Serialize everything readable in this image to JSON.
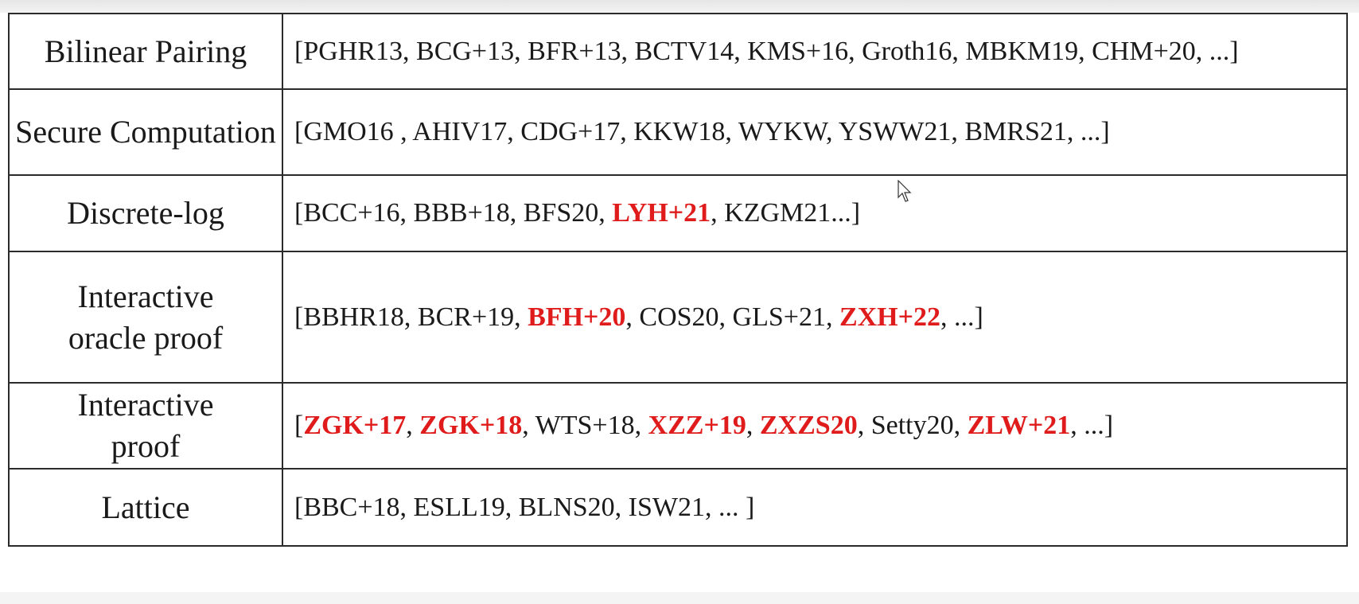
{
  "rows": [
    {
      "label": "Bilinear Pairing",
      "refs": [
        {
          "text": "[PGHR13, BCG+13, BFR+13, BCTV14, KMS+16, Groth16, MBKM19, CHM+20, ...]",
          "highlight": false
        }
      ]
    },
    {
      "label": "Secure Computation",
      "refs": [
        {
          "text": "[GMO16 , AHIV17, CDG+17, KKW18, WYKW, YSWW21, BMRS21, ...]",
          "highlight": false
        }
      ]
    },
    {
      "label": "Discrete-log",
      "refs": [
        {
          "text": "[BCC+16, BBB+18, BFS20, ",
          "highlight": false
        },
        {
          "text": "LYH+21",
          "highlight": true
        },
        {
          "text": ", KZGM21...]",
          "highlight": false
        }
      ]
    },
    {
      "label": "Interactive oracle proof",
      "refs": [
        {
          "text": "[BBHR18, BCR+19, ",
          "highlight": false
        },
        {
          "text": "BFH+20",
          "highlight": true
        },
        {
          "text": ", COS20, GLS+21, ",
          "highlight": false
        },
        {
          "text": "ZXH+22",
          "highlight": true
        },
        {
          "text": ", ...]",
          "highlight": false
        }
      ]
    },
    {
      "label": "Interactive proof",
      "refs": [
        {
          "text": "[",
          "highlight": false
        },
        {
          "text": "ZGK+17",
          "highlight": true
        },
        {
          "text": ", ",
          "highlight": false
        },
        {
          "text": "ZGK+18",
          "highlight": true
        },
        {
          "text": ", WTS+18, ",
          "highlight": false
        },
        {
          "text": "XZZ+19",
          "highlight": true
        },
        {
          "text": ", ",
          "highlight": false
        },
        {
          "text": "ZXZS20",
          "highlight": true
        },
        {
          "text": ", Setty20, ",
          "highlight": false
        },
        {
          "text": "ZLW+21",
          "highlight": true
        },
        {
          "text": ", ...]",
          "highlight": false
        }
      ]
    },
    {
      "label": "Lattice",
      "refs": [
        {
          "text": "[BBC+18, ESLL19, BLNS20, ISW21, ... ]",
          "highlight": false
        }
      ]
    }
  ],
  "colors": {
    "highlight": "#e01b1b",
    "text": "#1a1a1a",
    "border": "#2b2b2b"
  },
  "icons": {
    "cursor": "mouse-pointer-icon"
  }
}
